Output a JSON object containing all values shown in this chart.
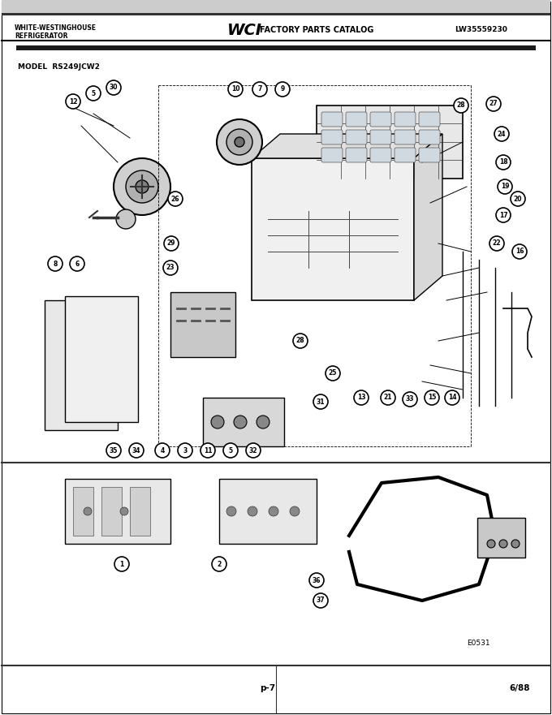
{
  "title": "WHITE-WESTINGHOUSE REFRIGERATOR",
  "catalog_logo": "WCI FACTORY PARTS CATALOG",
  "catalog_number": "LW35559230",
  "model": "MODEL RS249JCW2",
  "page": "p-7",
  "date": "6/88",
  "diagram_code": "E0531",
  "bg_color": "#ffffff",
  "border_color": "#000000",
  "header_bg": "#1a1a1a",
  "part_numbers_top": [
    "12",
    "5",
    "30",
    "10",
    "7",
    "9",
    "26",
    "28",
    "27",
    "24",
    "18",
    "19",
    "20",
    "17",
    "22",
    "16"
  ],
  "part_numbers_mid": [
    "8",
    "6",
    "29",
    "23",
    "28",
    "25",
    "31",
    "13",
    "21",
    "33",
    "15",
    "14"
  ],
  "part_numbers_bot": [
    "35",
    "34",
    "4",
    "3",
    "11",
    "5",
    "32"
  ],
  "part_numbers_lower": [
    "1",
    "2",
    "36",
    "37"
  ],
  "line_color": "#000000",
  "circle_color": "#000000",
  "circle_fill": "#ffffff",
  "text_color": "#000000",
  "header_text_color": "#ffffff",
  "thin_line": 0.5,
  "med_line": 1.0,
  "thick_line": 1.5
}
